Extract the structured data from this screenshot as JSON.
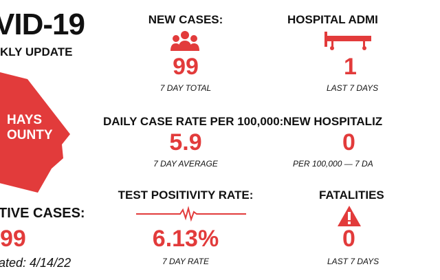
{
  "header": {
    "title": "VID-19",
    "subtitle": "KLY UPDATE"
  },
  "county": {
    "line1": "HAYS",
    "line2": "OUNTY",
    "color": "#e23b3b"
  },
  "active": {
    "heading": "TIVE CASES:",
    "value": "99",
    "updated": "ated: 4/14/22"
  },
  "new_cases": {
    "heading": "NEW CASES:",
    "value": "99",
    "note": "7 DAY TOTAL",
    "icon": "people-icon"
  },
  "daily_rate": {
    "heading": "DAILY CASE RATE PER 100,000:",
    "value": "5.9",
    "note": "7 DAY AVERAGE"
  },
  "positivity": {
    "heading": "TEST POSITIVITY RATE:",
    "value": "6.13%",
    "note": "7 DAY RATE",
    "icon": "pulse-line-icon"
  },
  "hospital": {
    "heading": "HOSPITAL ADMI",
    "value": "1",
    "note": "LAST 7 DAYS",
    "icon": "hospital-bed-icon"
  },
  "new_hosp": {
    "heading": "NEW HOSPITALIZ",
    "value": "0",
    "note": "PER 100,000 — 7 DA"
  },
  "fatalities": {
    "heading": "FATALITIES",
    "value": "0",
    "note": "LAST 7 DAYS",
    "icon": "warning-icon"
  },
  "accent": "#e23b3b"
}
